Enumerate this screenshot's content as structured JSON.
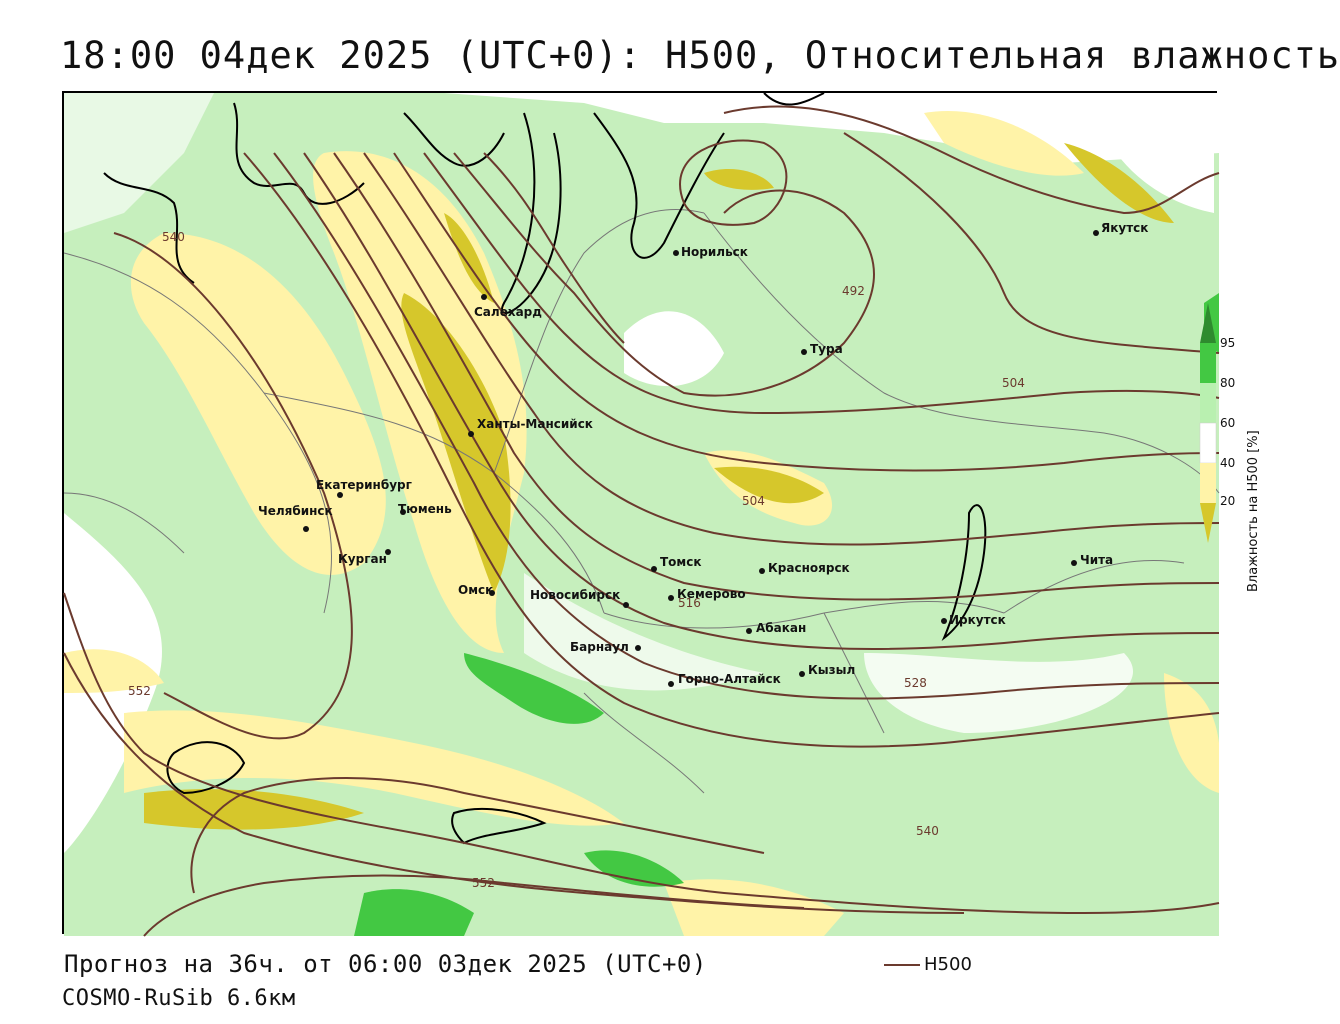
{
  "title": "18:00 04дек 2025 (UTC+0): H500, Относительная влажность",
  "footer": {
    "forecast": "Прогноз на 36ч. от 06:00 03дек 2025 (UTC+0)",
    "model": "COSMO-RuSib 6.6км",
    "legend_label": "H500"
  },
  "colorbar": {
    "title": "Влажность на Н500 [%]",
    "ticks": [
      "95",
      "80",
      "60",
      "40",
      "20"
    ],
    "colors": [
      "#2e8b2e",
      "#43c843",
      "#b9f0b0",
      "#ffffff",
      "#fff3a8",
      "#d6c72b"
    ]
  },
  "colors": {
    "contour": "#6b3a2e",
    "coast": "#000000",
    "border": "#777777"
  },
  "cities": [
    {
      "name": "Норильск"
    },
    {
      "name": "Якутск"
    },
    {
      "name": "Салехард"
    },
    {
      "name": "Тура"
    },
    {
      "name": "Ханты-Мансийск"
    },
    {
      "name": "Екатеринбург"
    },
    {
      "name": "Тюмень"
    },
    {
      "name": "Челябинск"
    },
    {
      "name": "Курган"
    },
    {
      "name": "Омск"
    },
    {
      "name": "Новосибирск"
    },
    {
      "name": "Томск"
    },
    {
      "name": "Кемерово"
    },
    {
      "name": "Красноярск"
    },
    {
      "name": "Абакан"
    },
    {
      "name": "Барнаул"
    },
    {
      "name": "Горно-Алтайск"
    },
    {
      "name": "Кызыл"
    },
    {
      "name": "Иркутск"
    },
    {
      "name": "Чита"
    }
  ],
  "contour_labels": [
    "540",
    "492",
    "504",
    "504",
    "516",
    "528",
    "540",
    "552",
    "552"
  ]
}
